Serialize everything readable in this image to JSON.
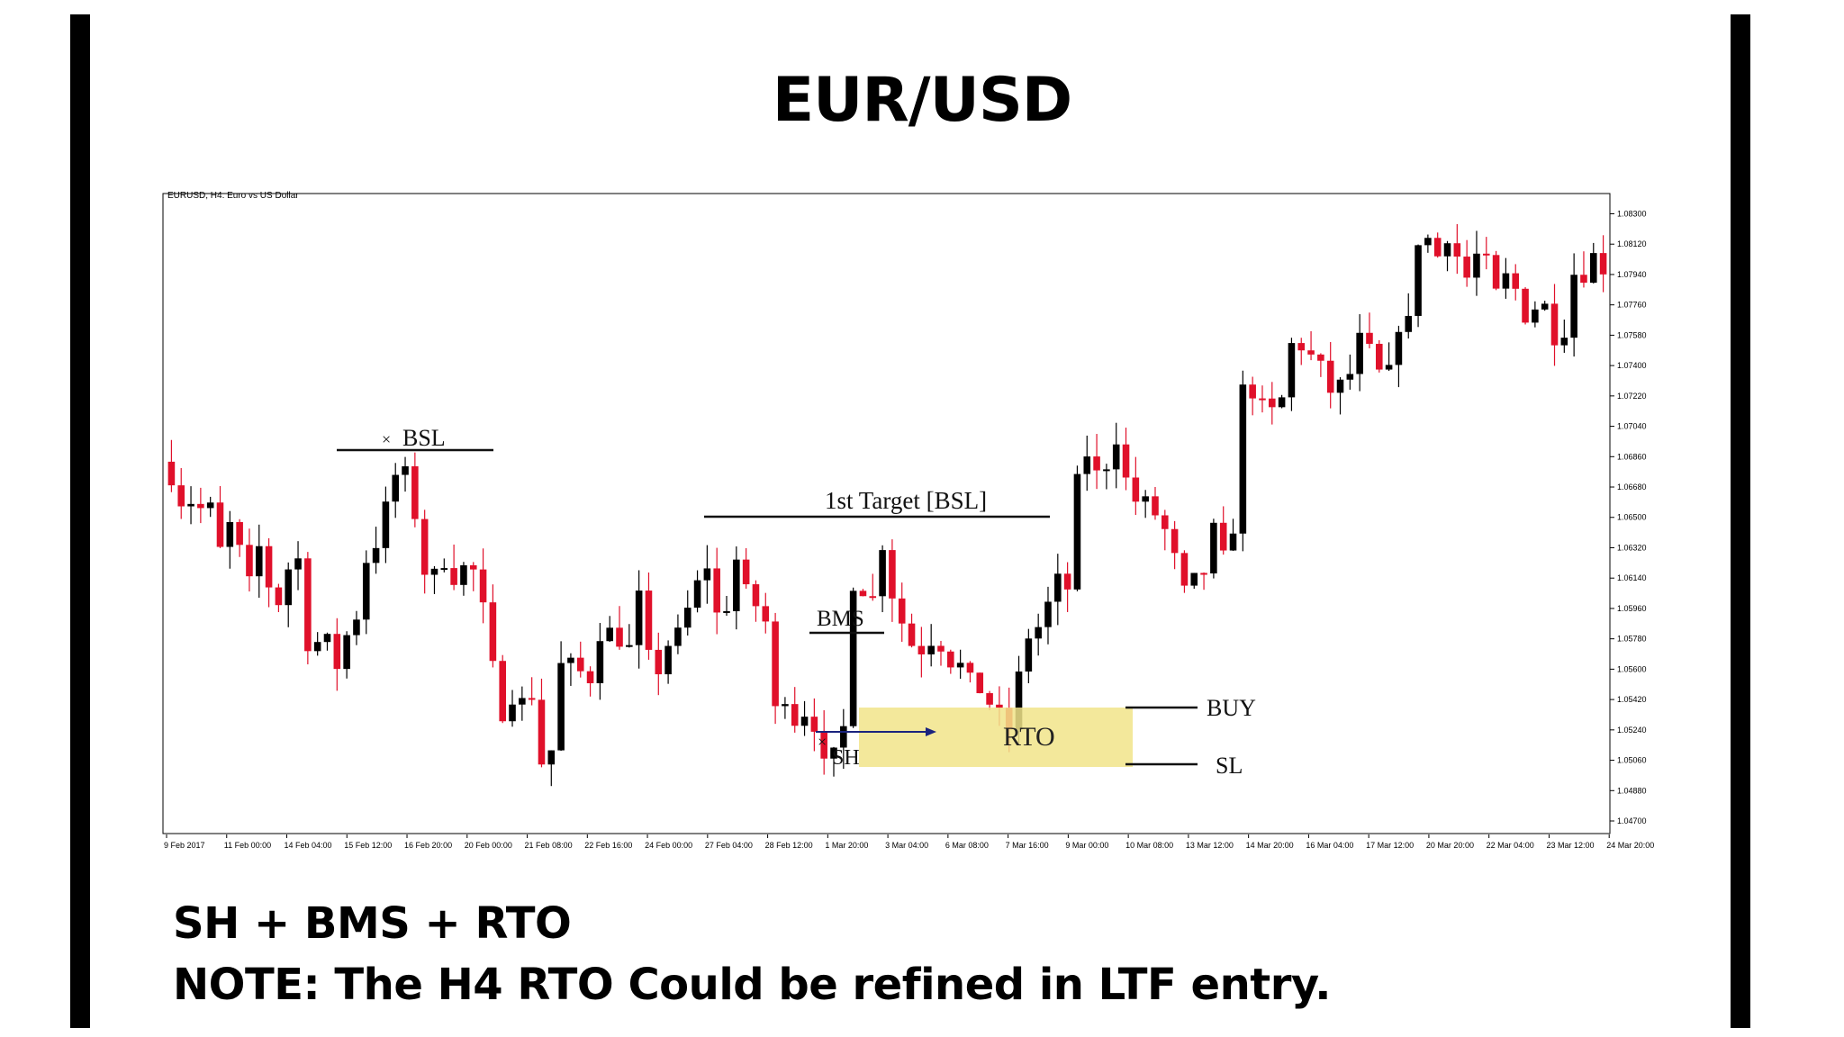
{
  "title": "EUR/USD",
  "notes": {
    "line1": "SH + BMS + RTO",
    "line2": "NOTE: The H4 RTO Could be refined in LTF entry."
  },
  "colors": {
    "bull": "#000000",
    "bear": "#e0102a",
    "zone": "#f1e48a",
    "axis": "#000000"
  },
  "chart_data": {
    "type": "candlestick",
    "symbol_label": "EURUSD, H4:  Euro vs US Dollar",
    "ylim": [
      1.0462,
      1.0842
    ],
    "y_ticks": [
      1.083,
      1.0812,
      1.0794,
      1.0776,
      1.0758,
      1.074,
      1.0722,
      1.0704,
      1.0686,
      1.0668,
      1.065,
      1.0632,
      1.0614,
      1.0596,
      1.0578,
      1.056,
      1.0542,
      1.0524,
      1.0506,
      1.0488,
      1.047
    ],
    "y_tick_labels": [
      "1.08300",
      "1.08120",
      "1.07940",
      "1.07760",
      "1.07580",
      "1.07400",
      "1.07220",
      "1.07040",
      "1.06860",
      "1.06680",
      "1.06500",
      "1.06320",
      "1.06140",
      "1.05960",
      "1.05780",
      "1.05600",
      "1.05420",
      "1.05240",
      "1.05060",
      "1.04880",
      "1.04700"
    ],
    "x_labels": [
      "9 Feb 2017",
      "11 Feb 00:00",
      "14 Feb 04:00",
      "15 Feb 12:00",
      "16 Feb 20:00",
      "20 Feb 00:00",
      "21 Feb 08:00",
      "22 Feb 16:00",
      "24 Feb 00:00",
      "27 Feb 04:00",
      "28 Feb 12:00",
      "1 Mar 20:00",
      "3 Mar 04:00",
      "6 Mar 08:00",
      "7 Mar 16:00",
      "9 Mar 00:00",
      "10 Mar 08:00",
      "13 Mar 12:00",
      "14 Mar 20:00",
      "16 Mar 04:00",
      "17 Mar 12:00",
      "20 Mar 20:00",
      "22 Mar 04:00",
      "23 Mar 12:00",
      "24 Mar 20:00"
    ],
    "path_points": [
      1.0675,
      1.066,
      1.066,
      1.0655,
      1.0655,
      1.063,
      1.0645,
      1.063,
      1.061,
      1.0632,
      1.061,
      1.06,
      1.062,
      1.0625,
      1.0576,
      1.0576,
      1.0576,
      1.0562,
      1.058,
      1.0592,
      1.0625,
      1.0635,
      1.0655,
      1.0675,
      1.0675,
      1.0652,
      1.0618,
      1.0615,
      1.0625,
      1.0615,
      1.062,
      1.0618,
      1.0595,
      1.056,
      1.0535,
      1.0545,
      1.054,
      1.0545,
      1.0505,
      1.0512,
      1.0562,
      1.0562,
      1.0558,
      1.0555,
      1.0582,
      1.0582,
      1.0578,
      1.0572,
      1.0602,
      1.0566,
      1.056,
      1.0575,
      1.058,
      1.0595,
      1.061,
      1.0622,
      1.0592,
      1.0598,
      1.0625,
      1.0605,
      1.0598,
      1.0588,
      1.0535,
      1.0545,
      1.053,
      1.0535,
      1.0528,
      1.0502,
      1.0508,
      1.0525,
      1.0612,
      1.0608,
      1.0602,
      1.0635,
      1.0605,
      1.0588,
      1.0575,
      1.0572,
      1.0578,
      1.0575,
      1.0565,
      1.0562,
      1.0552,
      1.0548,
      1.054,
      1.0532,
      1.0525,
      1.0555,
      1.058,
      1.0585,
      1.0598,
      1.0612,
      1.0608,
      1.067,
      1.0688,
      1.0675,
      1.0682,
      1.0698,
      1.0672,
      1.066,
      1.0658,
      1.0652,
      1.0642,
      1.0625,
      1.0605,
      1.0612,
      1.0618,
      1.0642,
      1.0625,
      1.0645,
      1.0725,
      1.0725,
      1.0715,
      1.0712,
      1.072,
      1.0752,
      1.0752,
      1.0745,
      1.0738,
      1.0725,
      1.0728,
      1.0735,
      1.0755,
      1.0748,
      1.0735,
      1.0735,
      1.0765,
      1.0765,
      1.0815,
      1.0815,
      1.0805,
      1.0818,
      1.0805,
      1.0792,
      1.0805,
      1.08,
      1.0782,
      1.0792,
      1.0785,
      1.077,
      1.0775,
      1.0775,
      1.0758,
      1.0762,
      1.0795,
      1.0795,
      1.0805,
      1.0798
    ],
    "annotations": {
      "bsl": "BSL",
      "target": "1st Target [BSL]",
      "bms": "BMS",
      "sh": "SH",
      "rto": "RTO",
      "buy": "BUY",
      "sl": "SL",
      "x_mark": "×"
    }
  }
}
